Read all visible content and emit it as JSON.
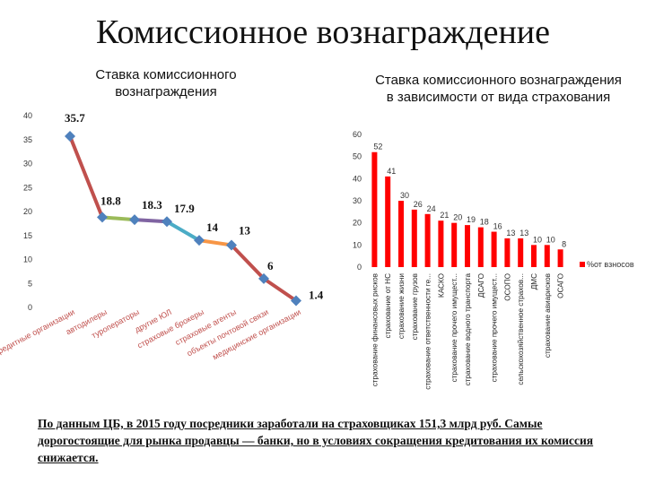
{
  "title": "Комиссионное вознаграждение",
  "source_note": "По данным ЦБ, в 2015 году посредники заработали на страховщиках 151,3 млрд руб. Самые дорогостоящие для рынка продавцы — банки, но в условиях сокращения кредитования их комиссия снижается.",
  "chart_data": [
    {
      "type": "line",
      "title": "Ставка комиссионного вознаграждения",
      "ylim": [
        0,
        40
      ],
      "yticks": [
        0,
        5,
        10,
        15,
        20,
        25,
        30,
        35,
        40
      ],
      "categories": [
        "кредитные организации",
        "автодилеры",
        "туроператоры",
        "другие ЮЛ",
        "страховые брокеры",
        "страховые агенты",
        "объекты почтовой связи",
        "медицинские организации"
      ],
      "values": [
        35.7,
        18.8,
        18.3,
        17.9,
        14,
        13,
        6,
        1.4
      ],
      "segment_colors": [
        "#c0504d",
        "#9bbb59",
        "#8064a2",
        "#4bacc6",
        "#f79646",
        "#c0504d",
        "#c0504d"
      ],
      "marker_color": "#4f81bd"
    },
    {
      "type": "bar",
      "title": "Ставка комиссионного вознаграждения в зависимости от вида страхования",
      "ylim": [
        0,
        60
      ],
      "yticks": [
        0,
        10,
        20,
        30,
        40,
        50,
        60
      ],
      "legend": "%от взносов",
      "legend_position": "right",
      "bar_color": "#ff0000",
      "categories": [
        "страхование финансовых рисков",
        "страхование от НС",
        "страхование жизни",
        "страхование грузов",
        "страхование ответственности ге...",
        "КАСКО",
        "страхование прочего имущест...",
        "страхование водного транспорта",
        "ДСАГО",
        "страхование прочего имущест...",
        "ОСОПО",
        "сельскохозяйственное страхов...",
        "ДМС",
        "страхование авиарисков",
        "ОСАГО"
      ],
      "values": [
        52,
        41,
        30,
        26,
        24,
        21,
        20,
        19,
        18,
        16,
        13,
        13,
        10,
        10,
        8
      ]
    }
  ]
}
